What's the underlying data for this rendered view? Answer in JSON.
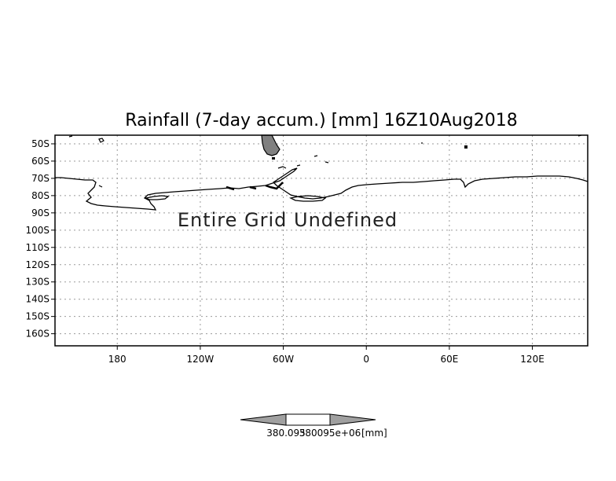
{
  "map": {
    "title": "Rainfall (7-day accum.) [mm] 16Z10Aug2018",
    "notice": "Entire Grid Undefined",
    "lat_labels": [
      "50S",
      "60S",
      "70S",
      "80S",
      "90S",
      "100S",
      "110S",
      "120S",
      "130S",
      "140S",
      "150S",
      "160S"
    ],
    "lon_labels": [
      "180",
      "120W",
      "60W",
      "0",
      "60E",
      "120E"
    ],
    "lon_values": [
      -180,
      -120,
      -60,
      0,
      60,
      120
    ],
    "lat_values": [
      -50,
      -60,
      -70,
      -80,
      -90,
      -100,
      -110,
      -120,
      -130,
      -140,
      -150,
      -160
    ],
    "lon_range": [
      -225,
      160
    ],
    "lat_range": [
      -167,
      -45
    ],
    "grid": true,
    "coast_color": "#000000",
    "land_fill_color": "#808080"
  },
  "colorbar": {
    "low_value": "380.095",
    "high_value": "380095e+06",
    "unit": "[mm]",
    "side_color": "#a0a0a0",
    "middle_color": "#ffffff"
  }
}
